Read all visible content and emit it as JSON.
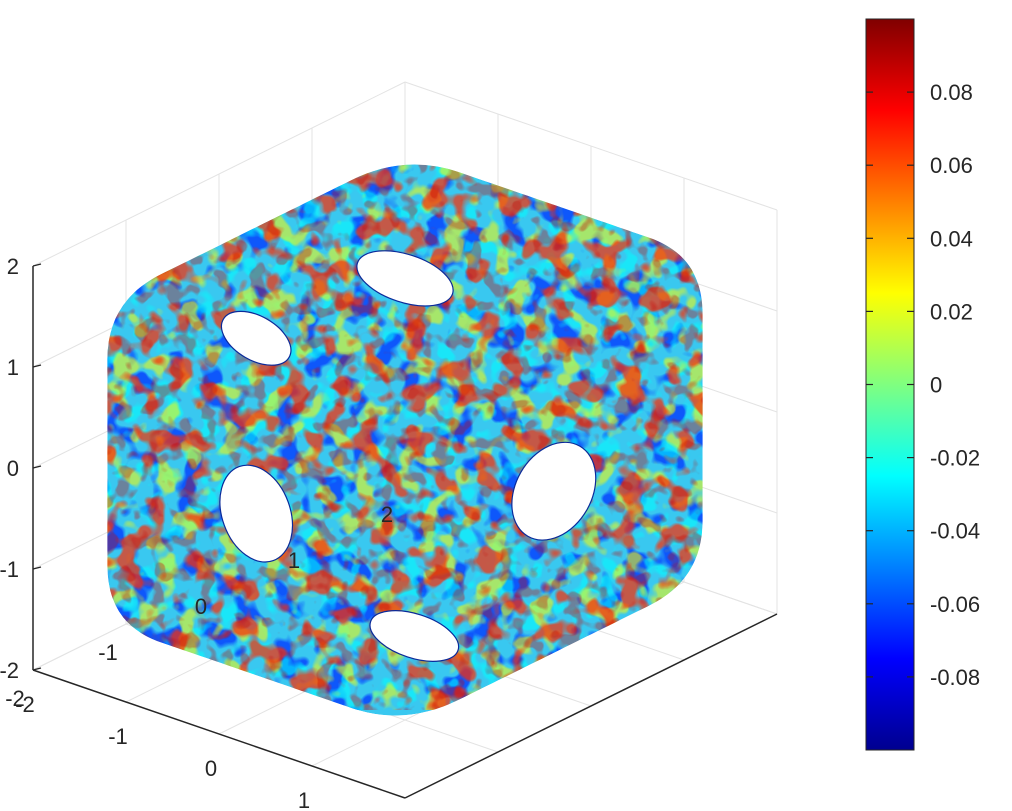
{
  "chart_data": {
    "type": "surface3d",
    "title": "",
    "xlabel": "",
    "ylabel": "",
    "zlabel": "",
    "xlim": [
      -2,
      2
    ],
    "ylim": [
      -2,
      2
    ],
    "zlim": [
      -2,
      2
    ],
    "x_ticks": [
      "-2",
      "-1",
      "0",
      "1",
      "2"
    ],
    "y_ticks": [
      "-2",
      "-1",
      "0",
      "1",
      "2"
    ],
    "z_ticks": [
      "-2",
      "-1",
      "0",
      "1",
      "2"
    ],
    "grid": true,
    "surface": "cube-like closed surface with one circular hole through the center of each face, coloured by random noise",
    "colormap": "jet",
    "colorbar": {
      "location": "right",
      "range": [
        -0.1,
        0.1
      ],
      "ticks": [
        "-0.08",
        "-0.06",
        "-0.04",
        "-0.02",
        "0",
        "0.02",
        "0.04",
        "0.06",
        "0.08"
      ],
      "tick_values": [
        -0.08,
        -0.06,
        -0.04,
        -0.02,
        0,
        0.02,
        0.04,
        0.06,
        0.08
      ]
    },
    "colors": {
      "axis": "#262626",
      "grid": "#e3e3e3",
      "jet_stops": [
        "#00008f",
        "#0000ff",
        "#00ffff",
        "#ffff00",
        "#ff0000",
        "#800000"
      ]
    }
  }
}
